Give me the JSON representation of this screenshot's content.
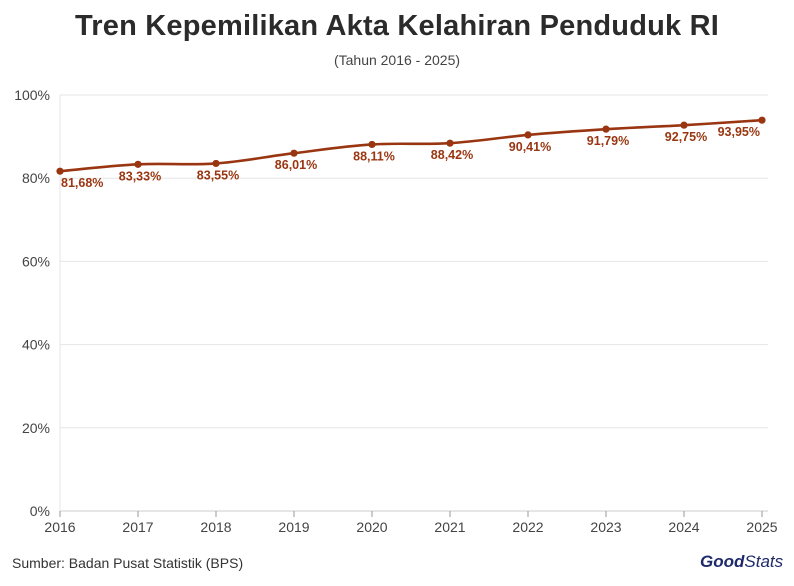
{
  "title": "Tren Kepemilikan Akta Kelahiran Penduduk RI",
  "subtitle": "(Tahun 2016 - 2025)",
  "source": "Sumber: Badan Pusat Statistik (BPS)",
  "logo": {
    "part1": "Good",
    "part2": "Stats"
  },
  "colors": {
    "line": "#993611",
    "label": "#993611",
    "grid": "#e6e6e6",
    "axis": "#cccccc",
    "logo": "#1f2a6b"
  },
  "chart_data": {
    "type": "line",
    "title": "Tren Kepemilikan Akta Kelahiran Penduduk RI",
    "subtitle": "(Tahun 2016 - 2025)",
    "xlabel": "",
    "ylabel": "",
    "x": [
      "2016",
      "2017",
      "2018",
      "2019",
      "2020",
      "2021",
      "2022",
      "2023",
      "2024",
      "2025"
    ],
    "values": [
      81.68,
      83.33,
      83.55,
      86.01,
      88.11,
      88.42,
      90.41,
      91.79,
      92.75,
      93.95
    ],
    "data_labels": [
      "81,68%",
      "83,33%",
      "83,55%",
      "86,01%",
      "88,11%",
      "88,42%",
      "90,41%",
      "91,79%",
      "92,75%",
      "93,95%"
    ],
    "ylim": [
      0,
      100
    ],
    "yticks": [
      0,
      20,
      40,
      60,
      80,
      100
    ],
    "ytick_labels": [
      "0%",
      "20%",
      "40%",
      "60%",
      "80%",
      "100%"
    ],
    "grid": true,
    "legend": "none",
    "smooth": true
  }
}
